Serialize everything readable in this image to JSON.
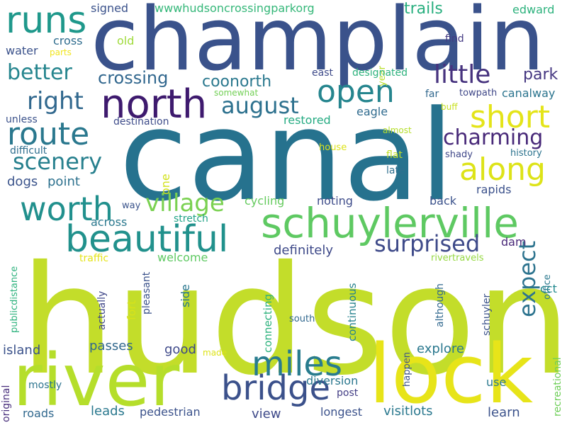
{
  "words": [
    {
      "text": "hudson",
      "color": "#c3dd2a"
    },
    {
      "text": "canal",
      "color": "#26728e"
    },
    {
      "text": "champlain",
      "color": "#3a528b"
    },
    {
      "text": "river",
      "color": "#b5de2b"
    },
    {
      "text": "lock",
      "color": "#e7e419"
    },
    {
      "text": "schuylerville",
      "color": "#5ec962"
    },
    {
      "text": "north",
      "color": "#3e1a6e"
    },
    {
      "text": "runs",
      "color": "#1f988b"
    },
    {
      "text": "beautiful",
      "color": "#21918c"
    },
    {
      "text": "bridge",
      "color": "#3b518b"
    },
    {
      "text": "miles",
      "color": "#287c8e"
    },
    {
      "text": "open",
      "color": "#25858e"
    },
    {
      "text": "along",
      "color": "#dde318"
    },
    {
      "text": "short",
      "color": "#e4e419"
    },
    {
      "text": "worth",
      "color": "#21908d"
    },
    {
      "text": "route",
      "color": "#2a788e"
    },
    {
      "text": "village",
      "color": "#7ad151"
    },
    {
      "text": "better",
      "color": "#25858e"
    },
    {
      "text": "right",
      "color": "#31688e"
    },
    {
      "text": "little",
      "color": "#46327e"
    },
    {
      "text": "august",
      "color": "#2d718e"
    },
    {
      "text": "scenery",
      "color": "#27808e"
    },
    {
      "text": "charming",
      "color": "#482979"
    },
    {
      "text": "surprised",
      "color": "#3e4a89"
    },
    {
      "text": "expect",
      "color": "#2c738e"
    },
    {
      "text": "crossing",
      "color": "#31678e"
    },
    {
      "text": "coonorth",
      "color": "#2a788e"
    },
    {
      "text": "park",
      "color": "#453781"
    },
    {
      "text": "trails",
      "color": "#29af7f"
    },
    {
      "text": "edward",
      "color": "#2db27d"
    },
    {
      "text": "wwwhudsoncrossingparkorg",
      "color": "#35b779"
    },
    {
      "text": "signed",
      "color": "#3b528b"
    },
    {
      "text": "cross",
      "color": "#2f6c8e"
    },
    {
      "text": "old",
      "color": "#9fda3a"
    },
    {
      "text": "water",
      "color": "#3b528b"
    },
    {
      "text": "parts",
      "color": "#f1e51d"
    },
    {
      "text": "year",
      "color": "#b8de29"
    },
    {
      "text": "find",
      "color": "#443a83"
    },
    {
      "text": "east",
      "color": "#3e4a89"
    },
    {
      "text": "designated",
      "color": "#2db27d"
    },
    {
      "text": "towpath",
      "color": "#3f4788"
    },
    {
      "text": "canalway",
      "color": "#2b748e"
    },
    {
      "text": "far",
      "color": "#31688e"
    },
    {
      "text": "somewhat",
      "color": "#73d056"
    },
    {
      "text": "buff",
      "color": "#c8e020"
    },
    {
      "text": "eagle",
      "color": "#2f6b8e"
    },
    {
      "text": "almost",
      "color": "#b5de2b"
    },
    {
      "text": "unless",
      "color": "#3b528b"
    },
    {
      "text": "destination",
      "color": "#3e4c8a"
    },
    {
      "text": "restored",
      "color": "#25ab82"
    },
    {
      "text": "difficult",
      "color": "#2e6e8e"
    },
    {
      "text": "flat",
      "color": "#c0df25"
    },
    {
      "text": "house",
      "color": "#dde318"
    },
    {
      "text": "shady",
      "color": "#3f4788"
    },
    {
      "text": "history",
      "color": "#2c738e"
    },
    {
      "text": "one",
      "color": "#d2e21b"
    },
    {
      "text": "late",
      "color": "#2e6f8e"
    },
    {
      "text": "dogs",
      "color": "#3a538b"
    },
    {
      "text": "point",
      "color": "#2d718e"
    },
    {
      "text": "rapids",
      "color": "#3b518b"
    },
    {
      "text": "cycling",
      "color": "#65cb5e"
    },
    {
      "text": "noting",
      "color": "#3e4c8a"
    },
    {
      "text": "back",
      "color": "#3b528b"
    },
    {
      "text": "way",
      "color": "#3a538b"
    },
    {
      "text": "across",
      "color": "#2a788e"
    },
    {
      "text": "stretch",
      "color": "#20a386"
    },
    {
      "text": "dam",
      "color": "#482878"
    },
    {
      "text": "definitely",
      "color": "#3e4989"
    },
    {
      "text": "welcome",
      "color": "#5ec962"
    },
    {
      "text": "traffic",
      "color": "#e5e419"
    },
    {
      "text": "rivertravels",
      "color": "#95d840"
    },
    {
      "text": "office",
      "color": "#2a788e"
    },
    {
      "text": "cct",
      "color": "#23898e"
    },
    {
      "text": "publicdistance",
      "color": "#2db27d"
    },
    {
      "text": "actually",
      "color": "#3f4788"
    },
    {
      "text": "pleasant",
      "color": "#3b528b"
    },
    {
      "text": "fort",
      "color": "#d8e219"
    },
    {
      "text": "side",
      "color": "#2a778e"
    },
    {
      "text": "connecting",
      "color": "#2db27d"
    },
    {
      "text": "continuous",
      "color": "#26828e"
    },
    {
      "text": "although",
      "color": "#31688e"
    },
    {
      "text": "schuyler",
      "color": "#3b528b"
    },
    {
      "text": "south",
      "color": "#31688e"
    },
    {
      "text": "island",
      "color": "#3b528b"
    },
    {
      "text": "passes",
      "color": "#31688e"
    },
    {
      "text": "good",
      "color": "#3e4989"
    },
    {
      "text": "made",
      "color": "#dde318"
    },
    {
      "text": "explore",
      "color": "#2a788e"
    },
    {
      "text": "original",
      "color": "#472d7b"
    },
    {
      "text": "mostly",
      "color": "#2c738e"
    },
    {
      "text": "diversion",
      "color": "#2a778e"
    },
    {
      "text": "post",
      "color": "#433e85"
    },
    {
      "text": "happen",
      "color": "#3b528b"
    },
    {
      "text": "use",
      "color": "#2a788e"
    },
    {
      "text": "recreational",
      "color": "#6ece58"
    },
    {
      "text": "roads",
      "color": "#31688e"
    },
    {
      "text": "leads",
      "color": "#2a788e"
    },
    {
      "text": "pedestrian",
      "color": "#3b528b"
    },
    {
      "text": "view",
      "color": "#3e4989"
    },
    {
      "text": "longest",
      "color": "#3b528b"
    },
    {
      "text": "visitlots",
      "color": "#2a788e"
    },
    {
      "text": "learn",
      "color": "#3b528b"
    }
  ]
}
